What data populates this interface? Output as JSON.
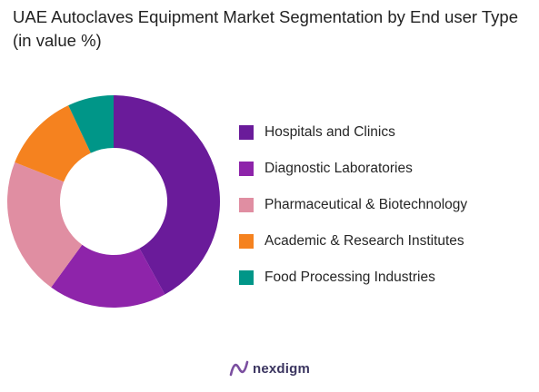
{
  "title": "UAE Autoclaves Equipment Market Segmentation by End user Type (in value %)",
  "chart_data": {
    "type": "pie",
    "donut": true,
    "title": "UAE Autoclaves Equipment Market Segmentation by End user Type (in value %)",
    "categories": [
      "Hospitals and Clinics",
      "Diagnostic Laboratories",
      "Pharmaceutical & Biotechnology",
      "Academic & Research Institutes",
      "Food Processing Industries"
    ],
    "values": [
      42,
      18,
      21,
      12,
      7
    ],
    "colors": [
      "#6a1b9a",
      "#8e24aa",
      "#e08ea2",
      "#f5821f",
      "#009688"
    ],
    "legend": "right"
  },
  "brand": {
    "name": "nexdigm",
    "logo_icon": "nexdigm-logo-icon"
  }
}
